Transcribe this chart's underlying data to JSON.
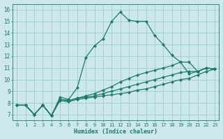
{
  "xlabel": "Humidex (Indice chaleur)",
  "bg_color": "#cce8ea",
  "grid_color": "#99cccc",
  "line_color": "#1a7a6e",
  "xlim": [
    -0.5,
    23.5
  ],
  "ylim": [
    6.5,
    16.5
  ],
  "xticks": [
    0,
    1,
    2,
    3,
    4,
    5,
    6,
    7,
    8,
    9,
    10,
    11,
    12,
    13,
    14,
    15,
    16,
    17,
    18,
    19,
    20,
    21,
    22,
    23
  ],
  "yticks": [
    7,
    8,
    9,
    10,
    11,
    12,
    13,
    14,
    15,
    16
  ],
  "lines": [
    {
      "x": [
        0,
        1,
        2,
        3,
        4,
        5,
        6,
        7,
        8,
        9,
        10,
        11,
        12,
        13,
        14,
        15,
        16,
        17,
        18,
        19,
        20,
        21,
        22,
        23
      ],
      "y": [
        7.8,
        7.8,
        7.0,
        7.8,
        6.9,
        8.5,
        8.3,
        9.3,
        11.9,
        12.9,
        13.5,
        15.0,
        15.8,
        15.1,
        15.0,
        15.0,
        13.8,
        13.0,
        12.1,
        11.5,
        10.5,
        10.7,
        11.0,
        10.9
      ]
    },
    {
      "x": [
        0,
        1,
        2,
        3,
        4,
        5,
        6,
        7,
        8,
        9,
        10,
        11,
        12,
        13,
        14,
        15,
        16,
        17,
        18,
        19,
        20,
        21,
        22,
        23
      ],
      "y": [
        7.8,
        7.8,
        7.0,
        7.8,
        6.9,
        8.3,
        8.2,
        8.4,
        8.6,
        8.8,
        9.1,
        9.4,
        9.8,
        10.1,
        10.4,
        10.6,
        10.8,
        11.0,
        11.2,
        11.5,
        11.5,
        10.7,
        11.0,
        10.9
      ]
    },
    {
      "x": [
        0,
        1,
        2,
        3,
        4,
        5,
        6,
        7,
        8,
        9,
        10,
        11,
        12,
        13,
        14,
        15,
        16,
        17,
        18,
        19,
        20,
        21,
        22,
        23
      ],
      "y": [
        7.8,
        7.8,
        7.0,
        7.8,
        6.9,
        8.3,
        8.2,
        8.4,
        8.5,
        8.6,
        8.8,
        9.0,
        9.2,
        9.4,
        9.6,
        9.8,
        10.0,
        10.2,
        10.4,
        10.6,
        10.7,
        10.7,
        11.0,
        10.9
      ]
    },
    {
      "x": [
        0,
        1,
        2,
        3,
        4,
        5,
        6,
        7,
        8,
        9,
        10,
        11,
        12,
        13,
        14,
        15,
        16,
        17,
        18,
        19,
        20,
        21,
        22,
        23
      ],
      "y": [
        7.8,
        7.8,
        7.0,
        7.8,
        6.9,
        8.2,
        8.1,
        8.3,
        8.4,
        8.5,
        8.6,
        8.7,
        8.8,
        8.9,
        9.1,
        9.2,
        9.4,
        9.6,
        9.8,
        10.0,
        10.1,
        10.4,
        10.7,
        10.9
      ]
    }
  ]
}
